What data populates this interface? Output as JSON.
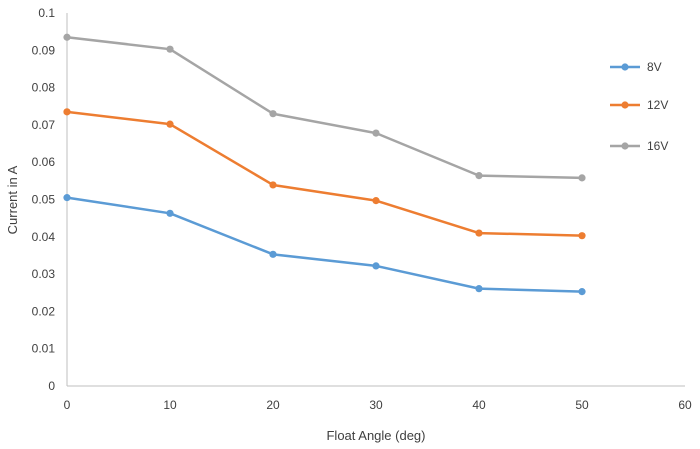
{
  "chart_data": {
    "type": "line",
    "title": "",
    "xlabel": "Float Angle (deg)",
    "ylabel": "Current in A",
    "xlim": [
      0,
      60
    ],
    "ylim": [
      0,
      0.1
    ],
    "xticks": [
      "0",
      "10",
      "20",
      "30",
      "40",
      "50",
      "60"
    ],
    "yticks": [
      "0",
      "0.01",
      "0.02",
      "0.03",
      "0.04",
      "0.05",
      "0.06",
      "0.07",
      "0.08",
      "0.09",
      "0.1"
    ],
    "x": [
      0,
      10,
      20,
      30,
      40,
      50
    ],
    "grid": false,
    "legend_position": "right",
    "series": [
      {
        "name": "8V",
        "color": "#5b9bd5",
        "values": [
          0.0505,
          0.0463,
          0.0353,
          0.0322,
          0.0261,
          0.0253
        ]
      },
      {
        "name": "12V",
        "color": "#ed7d31",
        "values": [
          0.0735,
          0.0702,
          0.0539,
          0.0497,
          0.041,
          0.0403
        ]
      },
      {
        "name": "16V",
        "color": "#a5a5a5",
        "values": [
          0.0935,
          0.0903,
          0.073,
          0.0678,
          0.0564,
          0.0558
        ]
      }
    ]
  }
}
